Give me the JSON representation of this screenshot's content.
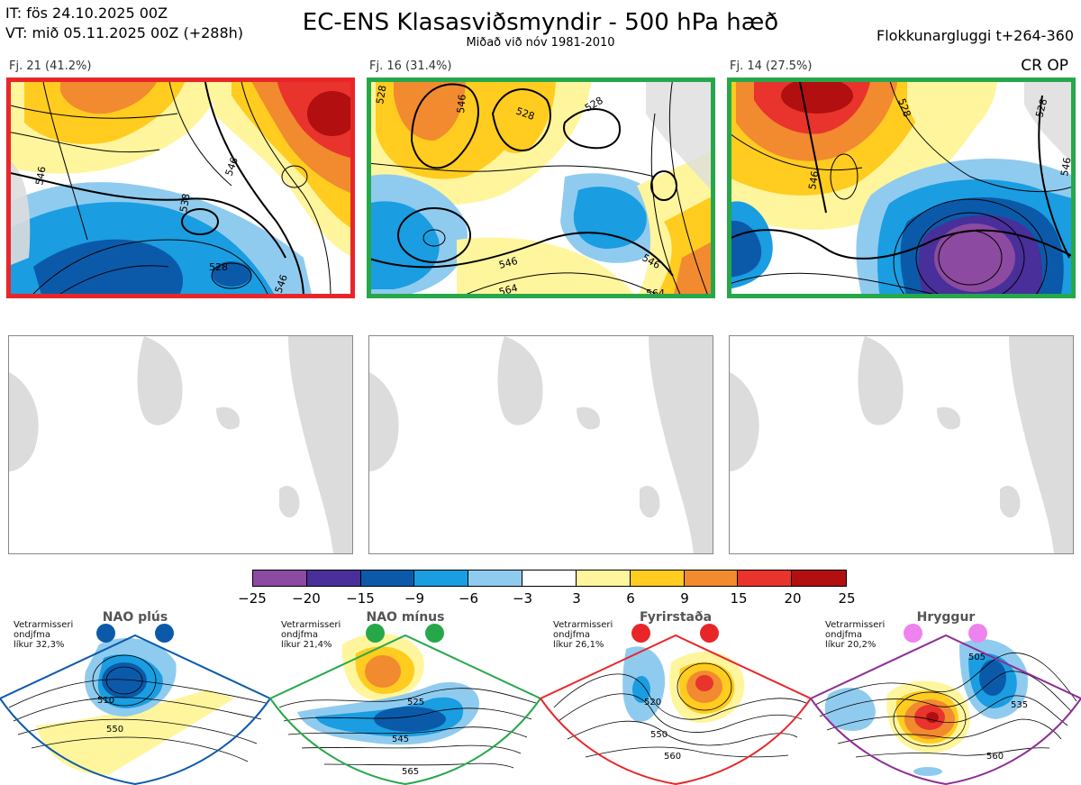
{
  "header": {
    "it_line": "IT: fös 24.10.2025 00Z",
    "vt_line": "VT: mið 05.11.2025 00Z  (+288h)",
    "title": "EC-ENS Klasasviðsmyndir - 500 hPa hæð",
    "subtitle": "Miðað við nóv 1981-2010",
    "window": "Flokkunargluggi t+264-360",
    "cr_op": "CR OP"
  },
  "clusters": [
    {
      "label": "Fj. 21 (41.2%)",
      "frame_color": "#e8262a",
      "contours": [
        "546",
        "538",
        "528",
        "546",
        "546"
      ]
    },
    {
      "label": "Fj. 16 (31.4%)",
      "frame_color": "#26a84a",
      "contours": [
        "528",
        "546",
        "528",
        "528",
        "546",
        "546",
        "564",
        "564"
      ]
    },
    {
      "label": "Fj. 14 (27.5%)",
      "frame_color": "#26a84a",
      "contours": [
        "528",
        "546",
        "528",
        "546"
      ]
    }
  ],
  "colorbar": {
    "colors": [
      "#8c4aa0",
      "#482f9a",
      "#0b5aaa",
      "#1a9de1",
      "#8fcbef",
      "#ffffff",
      "#fff59d",
      "#ffcc1f",
      "#f28a30",
      "#e8342c",
      "#b10f10"
    ],
    "ticks": [
      "−25",
      "−20",
      "−15",
      "−9",
      "−6",
      "−3",
      "3",
      "6",
      "9",
      "15",
      "20",
      "25"
    ]
  },
  "regimes": [
    {
      "title": "NAO plús",
      "note_lines": [
        "Vetrarmisseri",
        "ondjfma",
        "líkur 32,3%"
      ],
      "color": "#0b5aaa",
      "contours": [
        "510",
        "550"
      ]
    },
    {
      "title": "NAO mínus",
      "note_lines": [
        "Vetrarmisseri",
        "ondjfma",
        "líkur 21,4%"
      ],
      "color": "#26a84a",
      "contours": [
        "525",
        "545",
        "565"
      ]
    },
    {
      "title": "Fyrirstaða",
      "note_lines": [
        "Vetrarmisseri",
        "ondjfma",
        "líkur 26,1%"
      ],
      "color": "#e8262a",
      "contours": [
        "520",
        "550",
        "560"
      ]
    },
    {
      "title": "Hryggur",
      "note_lines": [
        "Vetrarmisseri",
        "ondjfma",
        "líkur 20,2%"
      ],
      "color": "#8e2d96",
      "contours": [
        "505",
        "535",
        "560"
      ]
    }
  ]
}
